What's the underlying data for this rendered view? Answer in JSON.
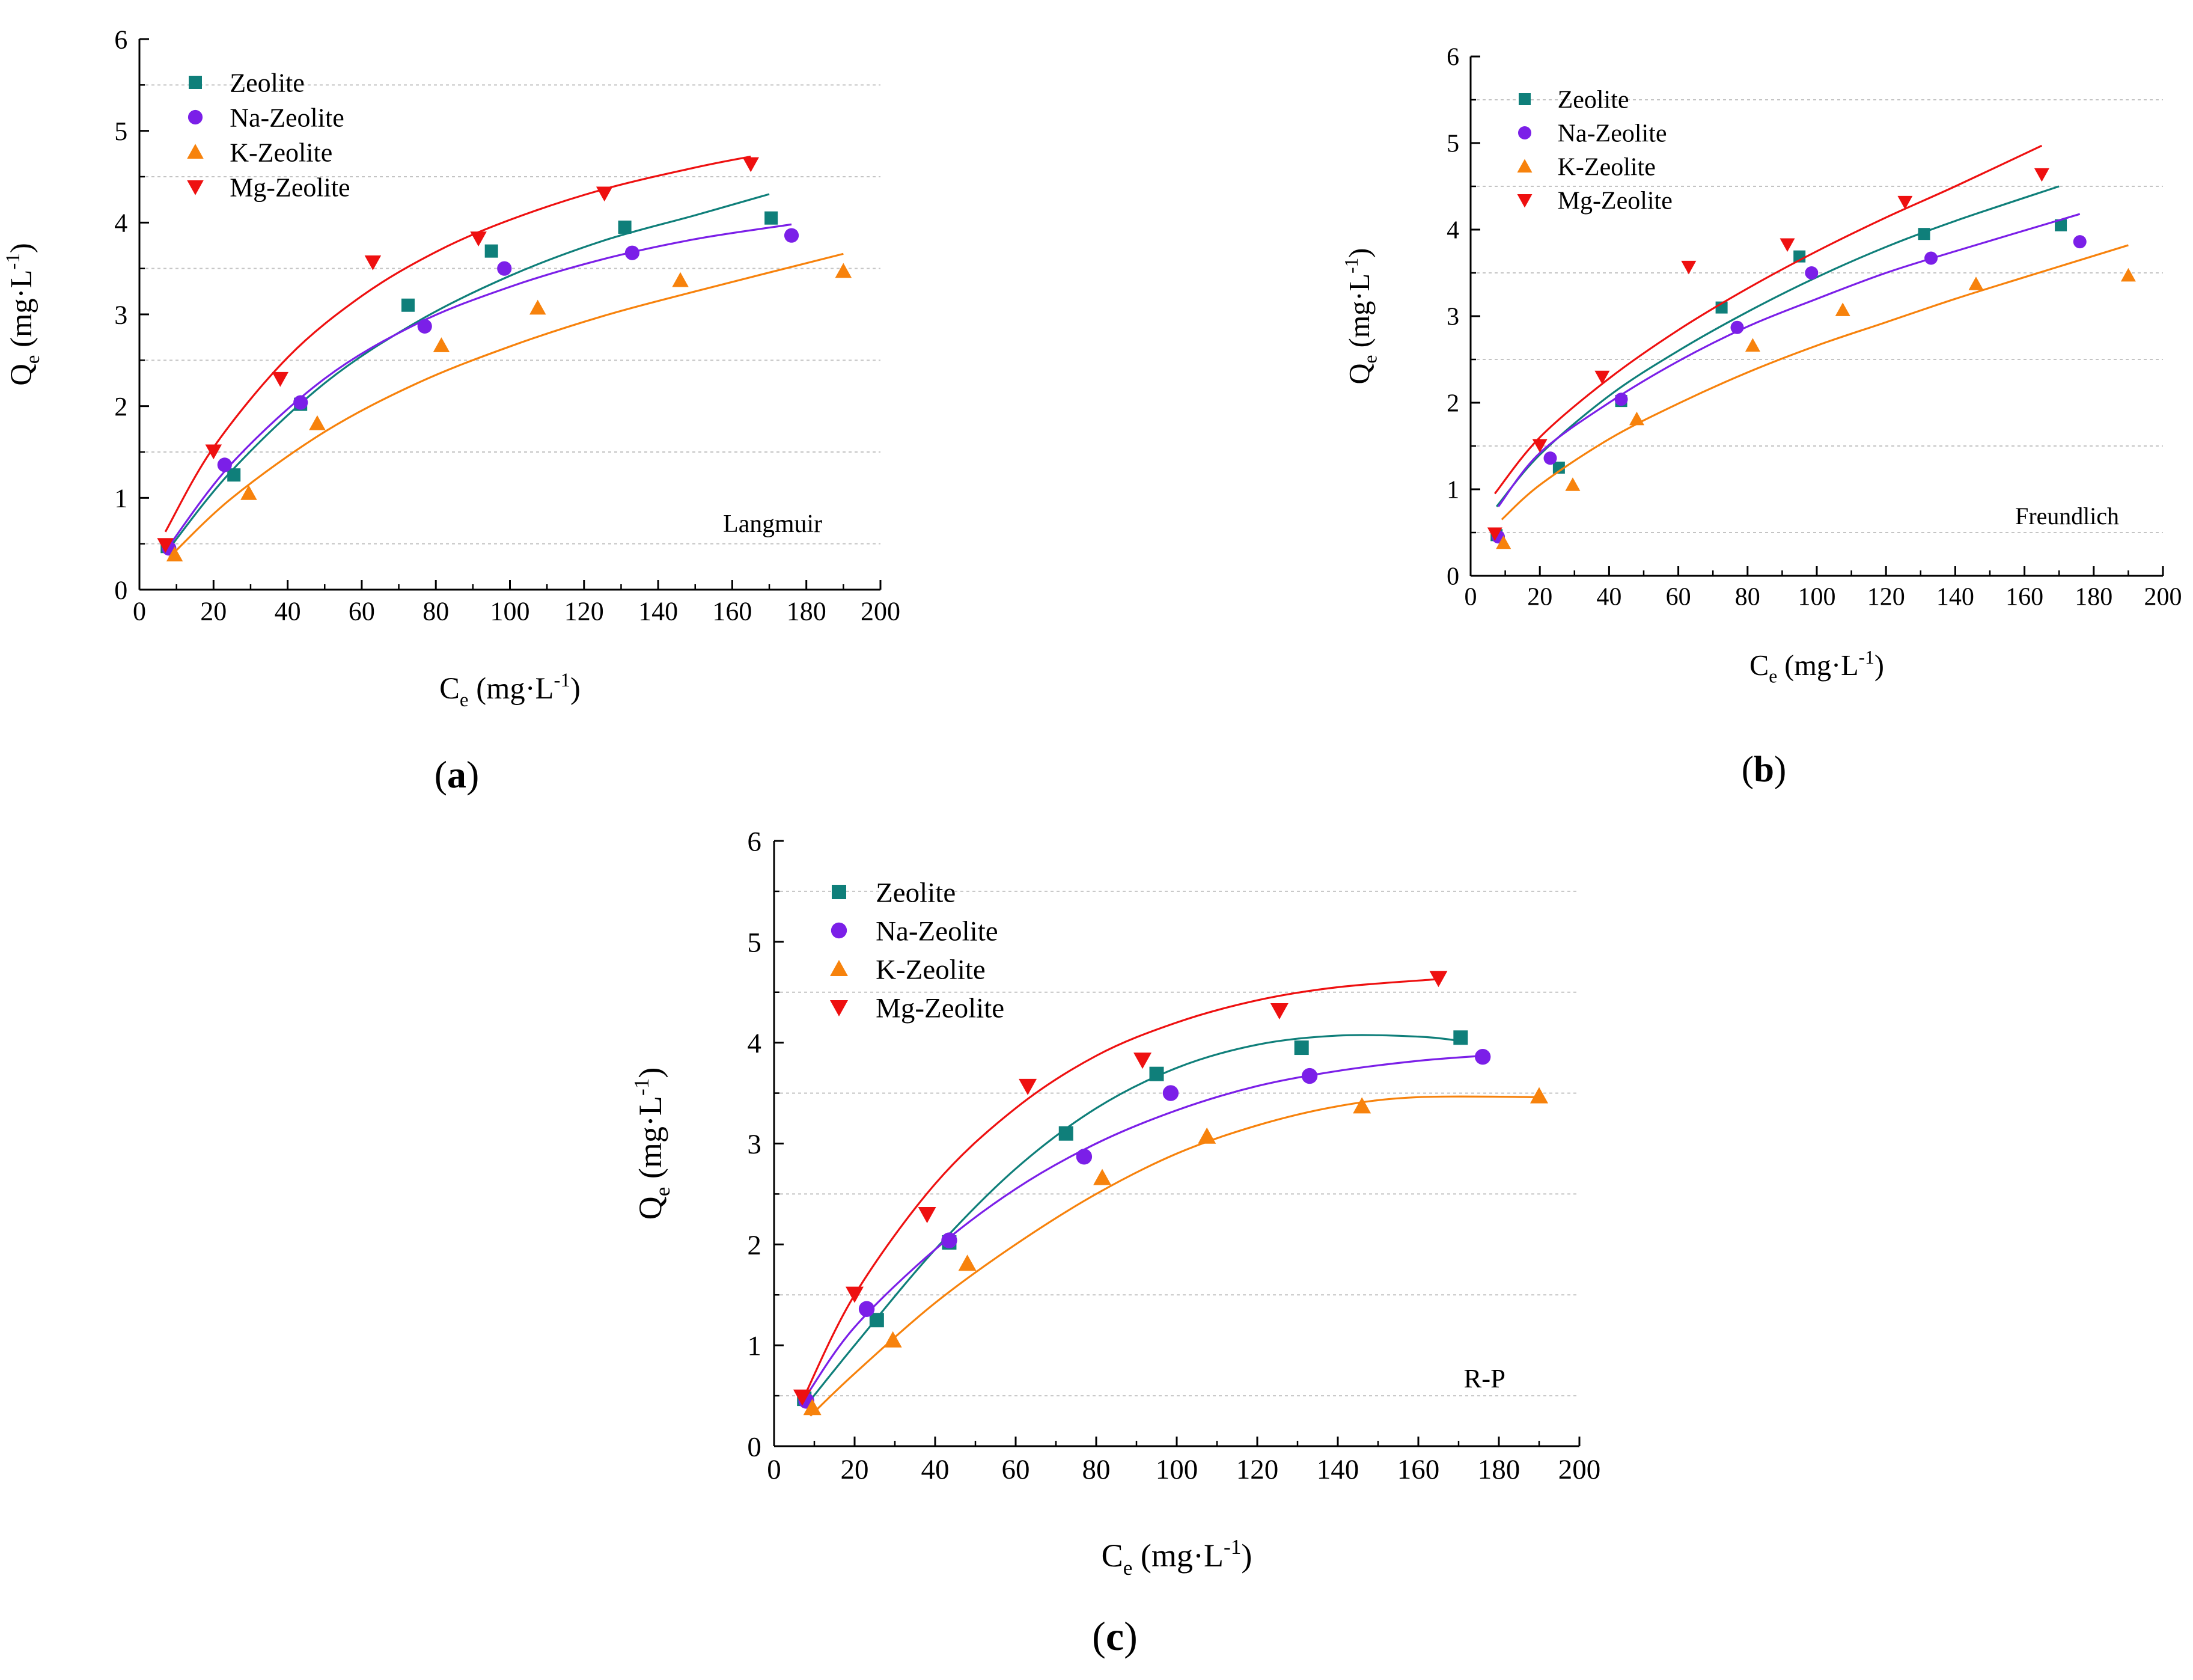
{
  "figure": {
    "caption_label_a": "a",
    "caption_label_b": "b",
    "caption_label_c": "c"
  },
  "legend_labels": [
    "Zeolite",
    "Na-Zeolite",
    "K-Zeolite",
    "Mg-Zeolite"
  ],
  "series_colors": {
    "Zeolite": "#0f7f7a",
    "Na-Zeolite": "#7b1fe8",
    "K-Zeolite": "#f7820c",
    "Mg-Zeolite": "#ee1010"
  },
  "series_markers": {
    "Zeolite": "square",
    "Na-Zeolite": "circle",
    "K-Zeolite": "triangle-up",
    "Mg-Zeolite": "triangle-down"
  },
  "chart_data": [
    {
      "id": "a",
      "panel_label": "(a)",
      "type": "scatter",
      "model": "Langmuir",
      "xlabel": "Ce (mg·L-1)",
      "ylabel": "Qe (mg·L-1)",
      "xlim": [
        0,
        200
      ],
      "ylim": [
        0,
        6
      ],
      "xticks": [
        "0",
        "20",
        "40",
        "60",
        "80",
        "100",
        "120",
        "140",
        "160",
        "180",
        "200"
      ],
      "yticks": [
        "0",
        "1",
        "2",
        "3",
        "4",
        "5",
        "6"
      ],
      "grid": "dashed horizontal at 0.5, 1.5, 2.5, 3.5, 4.5, 5.5",
      "legend_position": "top-left",
      "series": [
        {
          "name": "Zeolite",
          "x": [
            7.5,
            25.5,
            43.5,
            72.5,
            95,
            131,
            170.5
          ],
          "y": [
            0.47,
            1.25,
            2.02,
            3.1,
            3.69,
            3.95,
            4.05
          ],
          "fit": {
            "x": [
              7.5,
              25,
              50,
              75,
              100,
              125,
              150,
              170
            ],
            "y": [
              0.42,
              1.3,
              2.25,
              2.92,
              3.42,
              3.8,
              4.08,
              4.31
            ]
          }
        },
        {
          "name": "Na-Zeolite",
          "x": [
            8,
            23,
            43.5,
            77,
            98.5,
            133,
            176
          ],
          "y": [
            0.45,
            1.36,
            2.04,
            2.87,
            3.5,
            3.67,
            3.86
          ],
          "fit": {
            "x": [
              7.5,
              25,
              50,
              75,
              100,
              125,
              150,
              176
            ],
            "y": [
              0.45,
              1.38,
              2.3,
              2.9,
              3.3,
              3.6,
              3.82,
              3.98
            ]
          }
        },
        {
          "name": "K-Zeolite",
          "x": [
            9.5,
            29.5,
            48,
            81.5,
            107.5,
            146,
            190
          ],
          "y": [
            0.38,
            1.05,
            1.81,
            2.66,
            3.07,
            3.37,
            3.47
          ],
          "fit": {
            "x": [
              8,
              25,
              50,
              75,
              100,
              125,
              150,
              190
            ],
            "y": [
              0.35,
              1.0,
              1.72,
              2.25,
              2.65,
              2.98,
              3.25,
              3.66
            ]
          }
        },
        {
          "name": "Mg-Zeolite",
          "x": [
            7,
            20,
            38,
            63,
            91.5,
            125.5,
            165
          ],
          "y": [
            0.49,
            1.51,
            2.3,
            3.57,
            3.83,
            4.32,
            4.64
          ],
          "fit": {
            "x": [
              7,
              20,
              40,
              60,
              80,
              100,
              125,
              150,
              165
            ],
            "y": [
              0.63,
              1.55,
              2.53,
              3.2,
              3.68,
              4.03,
              4.36,
              4.6,
              4.72
            ]
          }
        }
      ]
    },
    {
      "id": "b",
      "panel_label": "(b)",
      "type": "scatter",
      "model": "Freundlich",
      "xlabel": "Ce (mg·L-1)",
      "ylabel": "Qe (mg·L-1)",
      "xlim": [
        0,
        200
      ],
      "ylim": [
        0,
        6
      ],
      "xticks": [
        "0",
        "20",
        "40",
        "60",
        "80",
        "100",
        "120",
        "140",
        "160",
        "180",
        "200"
      ],
      "yticks": [
        "0",
        "1",
        "2",
        "3",
        "4",
        "5",
        "6"
      ],
      "grid": "dashed horizontal at 0.5, 1.5, 2.5, 3.5, 4.5, 5.5",
      "legend_position": "top-left",
      "series": [
        {
          "name": "Zeolite",
          "x": [
            7.5,
            25.5,
            43.5,
            72.5,
            95,
            131,
            170.5
          ],
          "y": [
            0.47,
            1.25,
            2.02,
            3.1,
            3.69,
            3.95,
            4.05
          ],
          "fit": {
            "x": [
              7.5,
              20,
              40,
              60,
              80,
              100,
              120,
              140,
              170
            ],
            "y": [
              0.8,
              1.4,
              2.08,
              2.6,
              3.05,
              3.45,
              3.8,
              4.1,
              4.5
            ]
          }
        },
        {
          "name": "Na-Zeolite",
          "x": [
            8,
            23,
            43.5,
            77,
            98.5,
            133,
            176
          ],
          "y": [
            0.45,
            1.36,
            2.04,
            2.87,
            3.5,
            3.67,
            3.86
          ],
          "fit": {
            "x": [
              8,
              20,
              40,
              60,
              80,
              100,
              120,
              140,
              176
            ],
            "y": [
              0.8,
              1.42,
              2.0,
              2.48,
              2.88,
              3.2,
              3.5,
              3.75,
              4.18
            ]
          }
        },
        {
          "name": "K-Zeolite",
          "x": [
            9.5,
            29.5,
            48,
            81.5,
            107.5,
            146,
            190
          ],
          "y": [
            0.38,
            1.05,
            1.81,
            2.66,
            3.07,
            3.37,
            3.47
          ],
          "fit": {
            "x": [
              9,
              20,
              40,
              60,
              80,
              100,
              120,
              140,
              160,
              190
            ],
            "y": [
              0.65,
              1.05,
              1.58,
              1.99,
              2.35,
              2.66,
              2.93,
              3.2,
              3.45,
              3.82
            ]
          }
        },
        {
          "name": "Mg-Zeolite",
          "x": [
            7,
            20,
            38,
            63,
            91.5,
            125.5,
            165
          ],
          "y": [
            0.49,
            1.51,
            2.3,
            3.57,
            3.83,
            4.32,
            4.64
          ],
          "fit": {
            "x": [
              7,
              20,
              40,
              60,
              80,
              100,
              120,
              140,
              165
            ],
            "y": [
              0.95,
              1.6,
              2.28,
              2.84,
              3.32,
              3.75,
              4.14,
              4.5,
              4.97
            ]
          }
        }
      ]
    },
    {
      "id": "c",
      "panel_label": "(c)",
      "type": "scatter",
      "model": "R-P",
      "xlabel": "Ce (mg·L-1)",
      "ylabel": "Qe (mg·L-1)",
      "xlim": [
        0,
        200
      ],
      "ylim": [
        0,
        6
      ],
      "xticks": [
        "0",
        "20",
        "40",
        "60",
        "80",
        "100",
        "120",
        "140",
        "160",
        "180",
        "200"
      ],
      "yticks": [
        "0",
        "1",
        "2",
        "3",
        "4",
        "5",
        "6"
      ],
      "grid": "dashed horizontal at 0.5, 1.5, 2.5, 3.5, 4.5, 5.5",
      "legend_position": "top-left",
      "series": [
        {
          "name": "Zeolite",
          "x": [
            7.5,
            25.5,
            43.5,
            72.5,
            95,
            131,
            170.5
          ],
          "y": [
            0.47,
            1.25,
            2.02,
            3.1,
            3.69,
            3.95,
            4.05
          ],
          "fit": {
            "x": [
              7.5,
              20,
              40,
              60,
              80,
              100,
              120,
              140,
              160,
              170
            ],
            "y": [
              0.38,
              1.0,
              1.95,
              2.75,
              3.35,
              3.75,
              3.98,
              4.07,
              4.06,
              4.02
            ]
          }
        },
        {
          "name": "Na-Zeolite",
          "x": [
            8,
            23,
            43.5,
            77,
            98.5,
            133,
            176
          ],
          "y": [
            0.45,
            1.36,
            2.04,
            2.87,
            3.5,
            3.67,
            3.86
          ],
          "fit": {
            "x": [
              8,
              20,
              40,
              60,
              80,
              100,
              120,
              140,
              160,
              176
            ],
            "y": [
              0.5,
              1.18,
              1.95,
              2.55,
              3.0,
              3.33,
              3.57,
              3.72,
              3.82,
              3.87
            ]
          }
        },
        {
          "name": "K-Zeolite",
          "x": [
            9.5,
            29.5,
            48,
            81.5,
            107.5,
            146,
            190
          ],
          "y": [
            0.38,
            1.05,
            1.81,
            2.66,
            3.07,
            3.37,
            3.47
          ],
          "fit": {
            "x": [
              9,
              20,
              40,
              60,
              80,
              100,
              120,
              140,
              160,
              190
            ],
            "y": [
              0.3,
              0.72,
              1.42,
              2.0,
              2.5,
              2.9,
              3.18,
              3.37,
              3.46,
              3.46
            ]
          }
        },
        {
          "name": "Mg-Zeolite",
          "x": [
            7,
            20,
            38,
            63,
            91.5,
            125.5,
            165
          ],
          "y": [
            0.49,
            1.51,
            2.3,
            3.57,
            3.83,
            4.32,
            4.64
          ],
          "fit": {
            "x": [
              7,
              20,
              40,
              60,
              80,
              100,
              120,
              140,
              165
            ],
            "y": [
              0.45,
              1.5,
              2.6,
              3.35,
              3.87,
              4.2,
              4.42,
              4.55,
              4.63
            ]
          }
        }
      ]
    }
  ]
}
